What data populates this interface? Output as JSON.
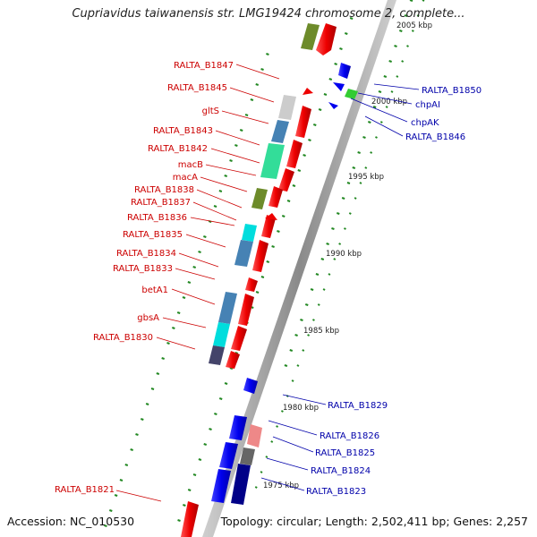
{
  "title": "Cupriavidus taiwanensis str. LMG19424 chromosome 2, complete...",
  "accession": "Accession: NC_010530",
  "topology": "Topology: circular; Length: 2,502,411 bp; Genes: 2,257",
  "colors": {
    "red_label": "#cc0000",
    "blue_label": "#0000aa",
    "backbone": "#999999",
    "tick": "#228822"
  },
  "scale_labels": [
    "2005 kbp",
    "2000 kbp",
    "1995 kbp",
    "1990 kbp",
    "1985 kbp",
    "1980 kbp",
    "1975 kbp"
  ],
  "left_labels": [
    "RALTA_B1847",
    "RALTA_B1845",
    "gltS",
    "RALTA_B1843",
    "RALTA_B1842",
    "macB",
    "macA",
    "RALTA_B1838",
    "RALTA_B1837",
    "RALTA_B1836",
    "RALTA_B1835",
    "RALTA_B1834",
    "RALTA_B1833",
    "betA1",
    "gbsA",
    "RALTA_B1830",
    "RALTA_B1821"
  ],
  "right_labels": [
    "RALTA_B1850",
    "chpAI",
    "chpAK",
    "RALTA_B1846",
    "RALTA_B1829",
    "RALTA_B1826",
    "RALTA_B1825",
    "RALTA_B1824",
    "RALTA_B1823"
  ]
}
